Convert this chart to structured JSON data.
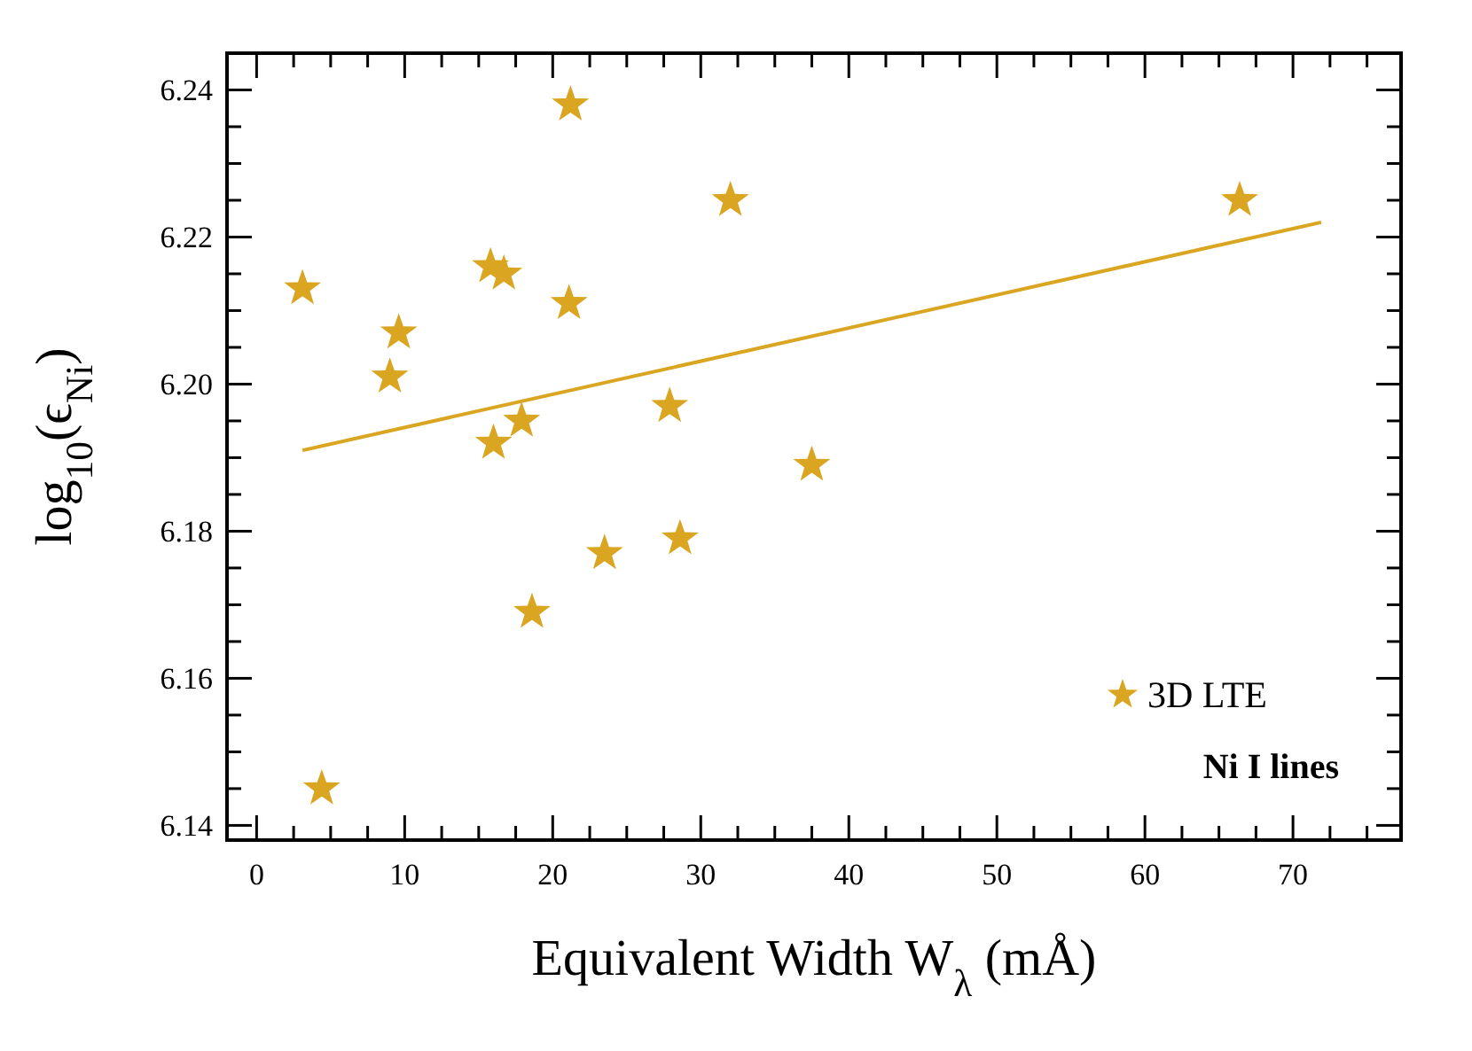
{
  "chart_data": {
    "type": "scatter",
    "xlabel": "Equivalent Width W$_{λ}$ (mÅ)",
    "ylabel": "log$_{10}$(ϵ$_{Ni}$)",
    "xlim": [
      -2,
      77.3
    ],
    "ylim": [
      6.138,
      6.245
    ],
    "xticks": [
      0,
      10,
      20,
      30,
      40,
      50,
      60,
      70,
      {
        "value": 2.5,
        "label": null
      },
      {
        "value": 5,
        "label": null
      },
      {
        "value": 7.5,
        "label": null
      },
      {
        "value": 12.5,
        "label": null
      },
      {
        "value": 15,
        "label": null
      },
      {
        "value": 17.5,
        "label": null
      },
      {
        "value": 22.5,
        "label": null
      },
      {
        "value": 25,
        "label": null
      },
      {
        "value": 27.5,
        "label": null
      },
      {
        "value": 32.5,
        "label": null
      },
      {
        "value": 35,
        "label": null
      },
      {
        "value": 37.5,
        "label": null
      },
      {
        "value": 42.5,
        "label": null
      },
      {
        "value": 45,
        "label": null
      },
      {
        "value": 47.5,
        "label": null
      },
      {
        "value": 52.5,
        "label": null
      },
      {
        "value": 55,
        "label": null
      },
      {
        "value": 57.5,
        "label": null
      },
      {
        "value": 62.5,
        "label": null
      },
      {
        "value": 65,
        "label": null
      },
      {
        "value": 67.5,
        "label": null
      },
      {
        "value": 72.5,
        "label": null
      },
      {
        "value": 75,
        "label": null
      }
    ],
    "yticks": [
      6.14,
      6.16,
      6.18,
      {
        "value": 6.2,
        "label": "6.20"
      },
      6.22,
      6.24,
      {
        "value": 6.145,
        "label": null
      },
      {
        "value": 6.15,
        "label": null
      },
      {
        "value": 6.155,
        "label": null
      },
      {
        "value": 6.165,
        "label": null
      },
      {
        "value": 6.17,
        "label": null
      },
      {
        "value": 6.175,
        "label": null
      },
      {
        "value": 6.185,
        "label": null
      },
      {
        "value": 6.19,
        "label": null
      },
      {
        "value": 6.195,
        "label": null
      },
      {
        "value": 6.205,
        "label": null
      },
      {
        "value": 6.21,
        "label": null
      },
      {
        "value": 6.215,
        "label": null
      },
      {
        "value": 6.225,
        "label": null
      },
      {
        "value": 6.23,
        "label": null
      },
      {
        "value": 6.235,
        "label": null
      }
    ],
    "series": [
      {
        "name": "3D LTE",
        "color": "#daa520",
        "marker": "star",
        "x": [
          3.1,
          4.4,
          9.0,
          9.6,
          15.8,
          16.7,
          16.0,
          17.9,
          18.6,
          21.2,
          21.1,
          23.5,
          27.9,
          28.6,
          32.0,
          37.5,
          66.4
        ],
        "values": [
          6.213,
          6.145,
          6.201,
          6.207,
          6.216,
          6.215,
          6.192,
          6.195,
          6.169,
          6.238,
          6.211,
          6.177,
          6.197,
          6.179,
          6.225,
          6.189,
          6.225
        ]
      },
      {
        "type": "line",
        "color": "#daa520",
        "x": [
          3.1,
          71.9
        ],
        "values": [
          6.191,
          6.222
        ]
      }
    ],
    "legend": "bottom right",
    "grid": false,
    "annotations": [
      "Ni I lines"
    ]
  }
}
